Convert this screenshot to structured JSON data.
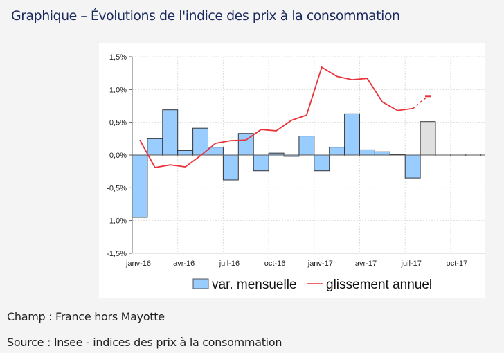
{
  "title": "Graphique – Évolutions de l'indice des prix à la consommation",
  "notes": {
    "champ": "Champ : France hors Mayotte",
    "source": "Source : Insee - indices des prix à la consommation"
  },
  "colors": {
    "bar": "#99ccff",
    "bar_provisional": "#e0e0e0",
    "line": "#e8333a",
    "title": "#1b2a5e"
  },
  "chart_data": {
    "type": "bar+line",
    "title": "",
    "ylim": [
      -1.5,
      1.5
    ],
    "y_ticks": [
      "-1,5%",
      "-1,0%",
      "-0,5%",
      "0,0%",
      "0,5%",
      "1,0%",
      "1,5%"
    ],
    "x_tick_labels": [
      "janv-16",
      "avr-16",
      "juil-16",
      "oct-16",
      "janv-17",
      "avr-17",
      "juil-17",
      "oct-17"
    ],
    "months": [
      "2016-01",
      "2016-02",
      "2016-03",
      "2016-04",
      "2016-05",
      "2016-06",
      "2016-07",
      "2016-08",
      "2016-09",
      "2016-10",
      "2016-11",
      "2016-12",
      "2017-01",
      "2017-02",
      "2017-03",
      "2017-04",
      "2017-05",
      "2017-06",
      "2017-07",
      "2017-08",
      "2017-09",
      "2017-10",
      "2017-11",
      "2017-12"
    ],
    "grid": true,
    "legend_position": "bottom",
    "series": [
      {
        "name": "var. mensuelle",
        "type": "bar",
        "values": [
          -0.95,
          0.25,
          0.69,
          0.07,
          0.41,
          0.12,
          -0.38,
          0.33,
          -0.24,
          0.03,
          -0.02,
          0.29,
          -0.24,
          0.12,
          0.63,
          0.08,
          0.05,
          0.01,
          -0.35,
          0.51
        ],
        "provisional_from_index": 19
      },
      {
        "name": "glissement annuel",
        "type": "line",
        "values": [
          0.23,
          -0.19,
          -0.15,
          -0.18,
          -0.01,
          0.18,
          0.22,
          0.23,
          0.39,
          0.37,
          0.53,
          0.61,
          1.34,
          1.2,
          1.15,
          1.17,
          0.81,
          0.68,
          0.71,
          0.9
        ],
        "provisional_from_index": 19
      }
    ]
  }
}
